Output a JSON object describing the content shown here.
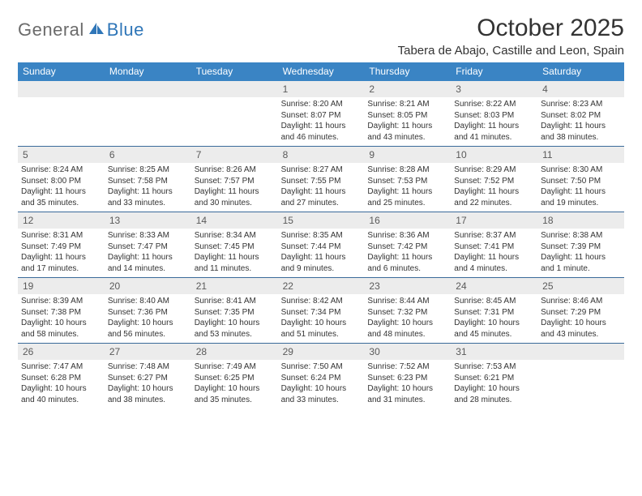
{
  "brand": {
    "part1": "General",
    "part2": "Blue"
  },
  "colors": {
    "headerBar": "#3a84c4",
    "dayNumBg": "#ececec",
    "rowBorder": "#3a6a9a",
    "brandGray": "#6b6b6b",
    "brandBlue": "#2f76b8"
  },
  "title": "October 2025",
  "location": "Tabera de Abajo, Castille and Leon, Spain",
  "weekdays": [
    "Sunday",
    "Monday",
    "Tuesday",
    "Wednesday",
    "Thursday",
    "Friday",
    "Saturday"
  ],
  "weeks": [
    [
      null,
      null,
      null,
      {
        "n": "1",
        "sr": "Sunrise: 8:20 AM",
        "ss": "Sunset: 8:07 PM",
        "dl": "Daylight: 11 hours and 46 minutes."
      },
      {
        "n": "2",
        "sr": "Sunrise: 8:21 AM",
        "ss": "Sunset: 8:05 PM",
        "dl": "Daylight: 11 hours and 43 minutes."
      },
      {
        "n": "3",
        "sr": "Sunrise: 8:22 AM",
        "ss": "Sunset: 8:03 PM",
        "dl": "Daylight: 11 hours and 41 minutes."
      },
      {
        "n": "4",
        "sr": "Sunrise: 8:23 AM",
        "ss": "Sunset: 8:02 PM",
        "dl": "Daylight: 11 hours and 38 minutes."
      }
    ],
    [
      {
        "n": "5",
        "sr": "Sunrise: 8:24 AM",
        "ss": "Sunset: 8:00 PM",
        "dl": "Daylight: 11 hours and 35 minutes."
      },
      {
        "n": "6",
        "sr": "Sunrise: 8:25 AM",
        "ss": "Sunset: 7:58 PM",
        "dl": "Daylight: 11 hours and 33 minutes."
      },
      {
        "n": "7",
        "sr": "Sunrise: 8:26 AM",
        "ss": "Sunset: 7:57 PM",
        "dl": "Daylight: 11 hours and 30 minutes."
      },
      {
        "n": "8",
        "sr": "Sunrise: 8:27 AM",
        "ss": "Sunset: 7:55 PM",
        "dl": "Daylight: 11 hours and 27 minutes."
      },
      {
        "n": "9",
        "sr": "Sunrise: 8:28 AM",
        "ss": "Sunset: 7:53 PM",
        "dl": "Daylight: 11 hours and 25 minutes."
      },
      {
        "n": "10",
        "sr": "Sunrise: 8:29 AM",
        "ss": "Sunset: 7:52 PM",
        "dl": "Daylight: 11 hours and 22 minutes."
      },
      {
        "n": "11",
        "sr": "Sunrise: 8:30 AM",
        "ss": "Sunset: 7:50 PM",
        "dl": "Daylight: 11 hours and 19 minutes."
      }
    ],
    [
      {
        "n": "12",
        "sr": "Sunrise: 8:31 AM",
        "ss": "Sunset: 7:49 PM",
        "dl": "Daylight: 11 hours and 17 minutes."
      },
      {
        "n": "13",
        "sr": "Sunrise: 8:33 AM",
        "ss": "Sunset: 7:47 PM",
        "dl": "Daylight: 11 hours and 14 minutes."
      },
      {
        "n": "14",
        "sr": "Sunrise: 8:34 AM",
        "ss": "Sunset: 7:45 PM",
        "dl": "Daylight: 11 hours and 11 minutes."
      },
      {
        "n": "15",
        "sr": "Sunrise: 8:35 AM",
        "ss": "Sunset: 7:44 PM",
        "dl": "Daylight: 11 hours and 9 minutes."
      },
      {
        "n": "16",
        "sr": "Sunrise: 8:36 AM",
        "ss": "Sunset: 7:42 PM",
        "dl": "Daylight: 11 hours and 6 minutes."
      },
      {
        "n": "17",
        "sr": "Sunrise: 8:37 AM",
        "ss": "Sunset: 7:41 PM",
        "dl": "Daylight: 11 hours and 4 minutes."
      },
      {
        "n": "18",
        "sr": "Sunrise: 8:38 AM",
        "ss": "Sunset: 7:39 PM",
        "dl": "Daylight: 11 hours and 1 minute."
      }
    ],
    [
      {
        "n": "19",
        "sr": "Sunrise: 8:39 AM",
        "ss": "Sunset: 7:38 PM",
        "dl": "Daylight: 10 hours and 58 minutes."
      },
      {
        "n": "20",
        "sr": "Sunrise: 8:40 AM",
        "ss": "Sunset: 7:36 PM",
        "dl": "Daylight: 10 hours and 56 minutes."
      },
      {
        "n": "21",
        "sr": "Sunrise: 8:41 AM",
        "ss": "Sunset: 7:35 PM",
        "dl": "Daylight: 10 hours and 53 minutes."
      },
      {
        "n": "22",
        "sr": "Sunrise: 8:42 AM",
        "ss": "Sunset: 7:34 PM",
        "dl": "Daylight: 10 hours and 51 minutes."
      },
      {
        "n": "23",
        "sr": "Sunrise: 8:44 AM",
        "ss": "Sunset: 7:32 PM",
        "dl": "Daylight: 10 hours and 48 minutes."
      },
      {
        "n": "24",
        "sr": "Sunrise: 8:45 AM",
        "ss": "Sunset: 7:31 PM",
        "dl": "Daylight: 10 hours and 45 minutes."
      },
      {
        "n": "25",
        "sr": "Sunrise: 8:46 AM",
        "ss": "Sunset: 7:29 PM",
        "dl": "Daylight: 10 hours and 43 minutes."
      }
    ],
    [
      {
        "n": "26",
        "sr": "Sunrise: 7:47 AM",
        "ss": "Sunset: 6:28 PM",
        "dl": "Daylight: 10 hours and 40 minutes."
      },
      {
        "n": "27",
        "sr": "Sunrise: 7:48 AM",
        "ss": "Sunset: 6:27 PM",
        "dl": "Daylight: 10 hours and 38 minutes."
      },
      {
        "n": "28",
        "sr": "Sunrise: 7:49 AM",
        "ss": "Sunset: 6:25 PM",
        "dl": "Daylight: 10 hours and 35 minutes."
      },
      {
        "n": "29",
        "sr": "Sunrise: 7:50 AM",
        "ss": "Sunset: 6:24 PM",
        "dl": "Daylight: 10 hours and 33 minutes."
      },
      {
        "n": "30",
        "sr": "Sunrise: 7:52 AM",
        "ss": "Sunset: 6:23 PM",
        "dl": "Daylight: 10 hours and 31 minutes."
      },
      {
        "n": "31",
        "sr": "Sunrise: 7:53 AM",
        "ss": "Sunset: 6:21 PM",
        "dl": "Daylight: 10 hours and 28 minutes."
      },
      null
    ]
  ]
}
